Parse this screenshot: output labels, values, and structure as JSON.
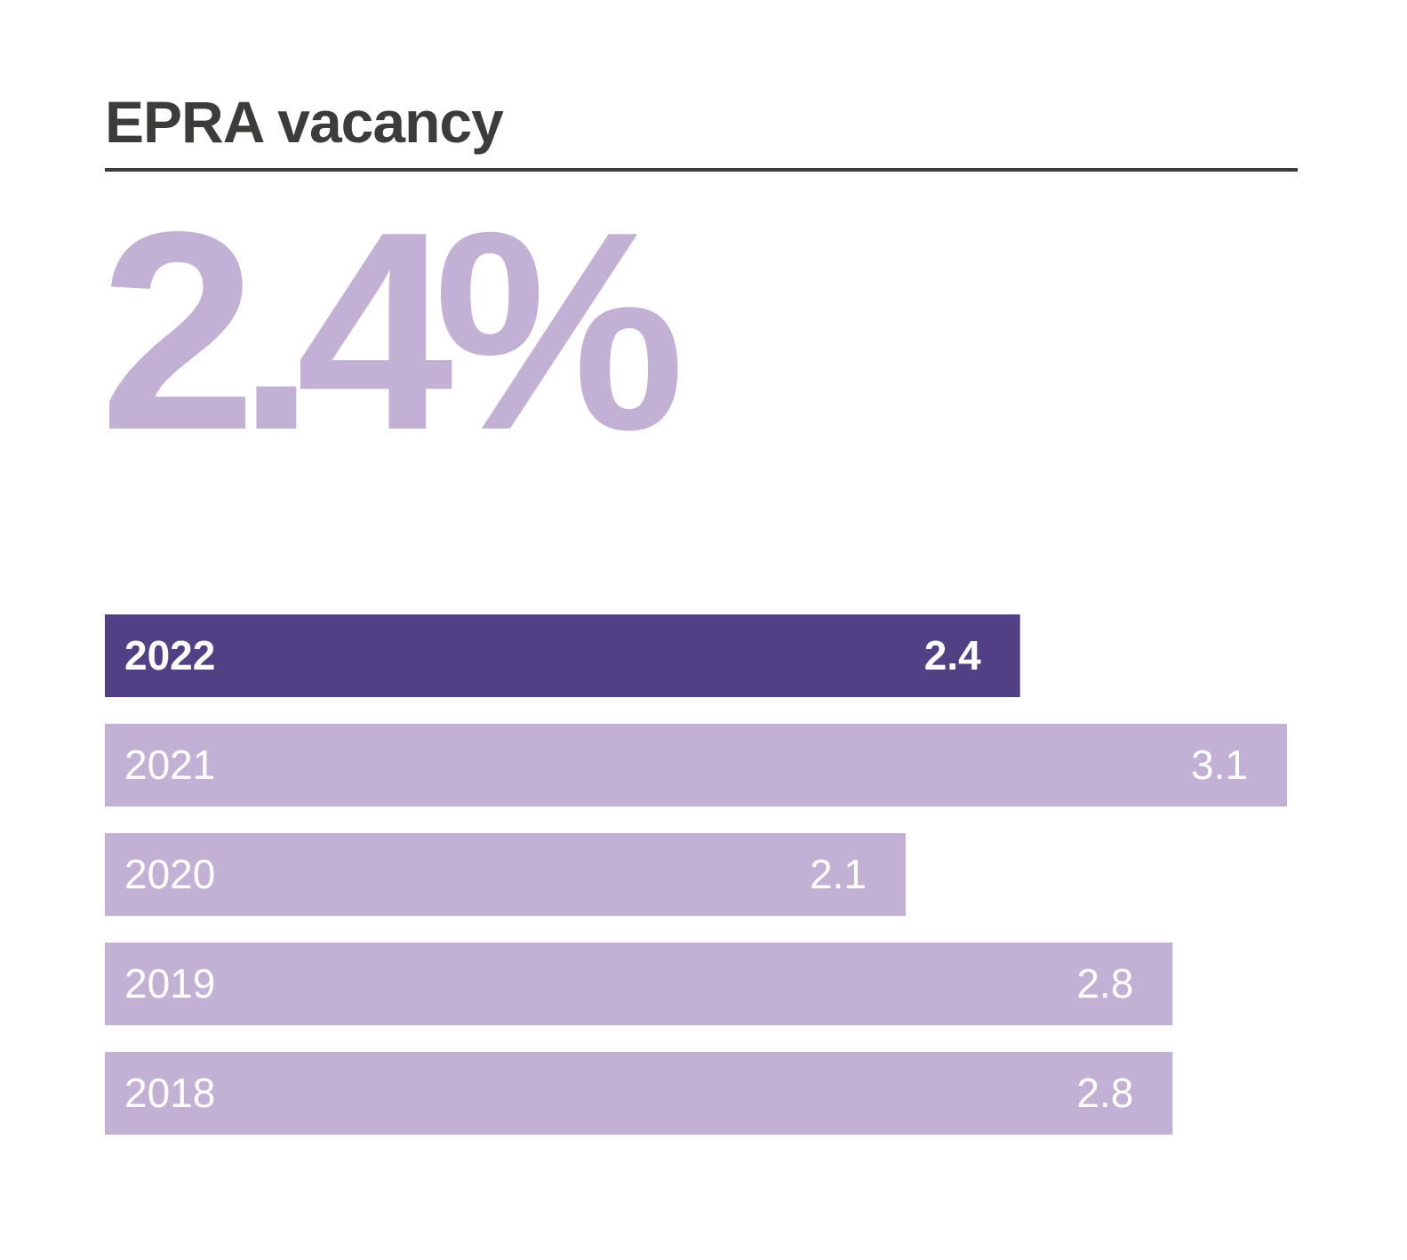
{
  "title": "EPRA vacancy",
  "headline": "2.4%",
  "colors": {
    "current_bar": "#524084",
    "past_bar": "#c2b1d5",
    "title": "#3c3c3b",
    "headline": "#c2b1d5",
    "label": "#ffffff"
  },
  "chart_data": {
    "type": "bar",
    "orientation": "horizontal",
    "categories": [
      "2022",
      "2021",
      "2020",
      "2019",
      "2018"
    ],
    "values": [
      2.4,
      3.1,
      2.1,
      2.8,
      2.8
    ],
    "value_labels": [
      "2.4",
      "3.1",
      "2.1",
      "2.8",
      "2.8"
    ],
    "highlighted_category": "2022",
    "title": "EPRA vacancy",
    "xlabel": "",
    "ylabel": "",
    "grid": false,
    "legend": "none"
  }
}
